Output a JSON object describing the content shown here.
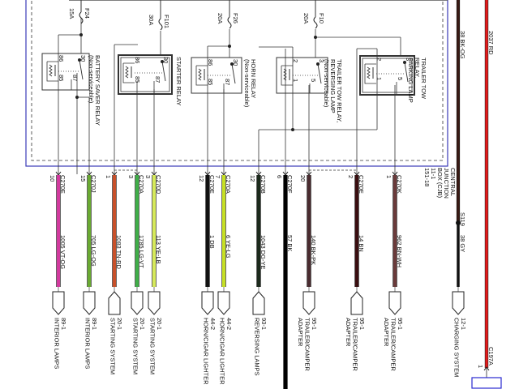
{
  "junction_box": {
    "lines": [
      "CENTRAL",
      "JUNCTION",
      "BOX (CJB)",
      "11-1",
      "151-18"
    ],
    "border_color": "#3a3ab8"
  },
  "top_pin": "2",
  "fuses": [
    {
      "name": "F24",
      "rating": "15A"
    },
    {
      "name": "F101",
      "rating": "30A"
    },
    {
      "name": "F26",
      "rating": "20A"
    },
    {
      "name": "F10",
      "rating": "20A"
    }
  ],
  "relays": [
    {
      "id": "battery-saver",
      "title": [
        "BATTERY SAVER RELAY",
        "(Non-serviceable)"
      ],
      "pins": [
        "86",
        "85",
        "30",
        "87"
      ]
    },
    {
      "id": "starter",
      "title": [
        "STARTER RELAY"
      ],
      "pins": [
        "86",
        "85",
        "30",
        "87"
      ]
    },
    {
      "id": "horn",
      "title": [
        "HORN RELAY",
        "(Non-serviceable)"
      ],
      "pins": [
        "86",
        "85",
        "30",
        "87"
      ]
    },
    {
      "id": "trailer-reversing",
      "title": [
        "TRAILER TOW RELAY,",
        "REVERSING LAMP",
        "(Non-serviceable)"
      ],
      "pins": [
        "2",
        "1",
        "3",
        "5"
      ]
    },
    {
      "id": "trailer-parking",
      "title": [
        "TRAILER TOW",
        "RELAY,",
        "PARKING LAMP"
      ],
      "pins": [
        "2",
        "1",
        "3",
        "5"
      ]
    }
  ],
  "circuits": [
    {
      "pin": "10",
      "connector": "C270E",
      "circuit": "1005  VT-OG",
      "color": "#d23a9e",
      "dest": [
        "89-1",
        "INTERIOR LAMPS"
      ],
      "arrow": "down"
    },
    {
      "pin": "15",
      "connector": "C270J",
      "circuit": "705  LG-OG",
      "color": "#6aaa32",
      "dest": [
        "89-1",
        "INTERIOR LAMPS"
      ],
      "arrow": "down"
    },
    {
      "pin": "1",
      "connector": "",
      "circuit": "1083  TN-RD",
      "color": "#c8502a",
      "dest": [
        "20-1",
        "STARTING SYSTEM"
      ],
      "arrow": "up"
    },
    {
      "pin": "3",
      "connector": "C270A",
      "circuit": "1785  LG-VT",
      "color": "#3fae48",
      "dest": [
        "20-1",
        "STARTING SYSTEM"
      ],
      "arrow": "down"
    },
    {
      "pin": "3",
      "connector": "C270D",
      "circuit": "113  YE-LB",
      "color": "#d6ea5a",
      "dest": [
        "20-1",
        "STARTING SYSTEM"
      ],
      "arrow": "down"
    },
    {
      "pin": "12",
      "connector": "C270E",
      "circuit": "1  DB",
      "color": "#111111",
      "dest": [
        "44-2",
        "HORN/CIGAR LIGHTER"
      ],
      "arrow": "down"
    },
    {
      "pin": "7",
      "connector": "C270A",
      "circuit": "6  YE-LG",
      "color": "#c6e024",
      "dest": [
        "44-2",
        "HORN/CIGAR LIGHTER"
      ],
      "arrow": "down"
    },
    {
      "pin": "12",
      "connector": "C270B",
      "circuit": "1043  DG-YE",
      "color": "#1c2a1c",
      "dest": [
        "93-1",
        "REVERSING LAMPS"
      ],
      "arrow": "up"
    },
    {
      "pin": "6",
      "connector": "C270F",
      "circuit": "57  BK",
      "color": "#000000",
      "dest": [],
      "arrow": "none"
    },
    {
      "pin": "20",
      "connector": "",
      "circuit": "140  BK-PK",
      "color": "#4a2c30",
      "dest": [
        "95-1",
        "TRAILER/CAMPER ADAPTER"
      ],
      "arrow": "down"
    },
    {
      "pin": "2",
      "connector": "C270E",
      "circuit": "14  BN",
      "color": "#3a0e10",
      "dest": [
        "95-1",
        "TRAILER/CAMPER ADAPTER"
      ],
      "arrow": "up"
    },
    {
      "pin": "1",
      "connector": "C270K",
      "circuit": "962  BN-WH",
      "color": "#6a3a3a",
      "dest": [
        "95-1",
        "TRAILER/CAMPER ADAPTER"
      ],
      "arrow": "down"
    }
  ],
  "charging": {
    "upper_circuit": "38  BK-OG",
    "upper_color": "#3a1a14",
    "splice": "S119",
    "lower_circuit": "38  GY",
    "lower_color": "#111111",
    "dest": [
      "12-1",
      "CHARGING SYSTEM"
    ]
  },
  "power": {
    "circuit": "2037  RD",
    "color": "#e41a1a",
    "connector": "C197A",
    "pin": "1"
  }
}
